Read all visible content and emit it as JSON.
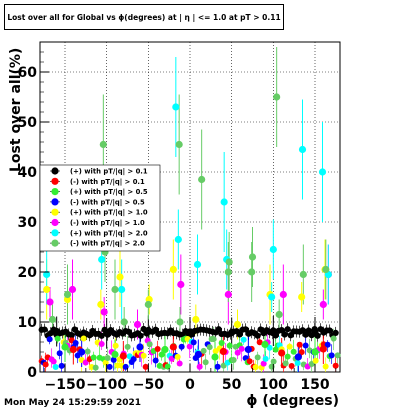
{
  "title": "Lost over all for Global vs ϕ(degrees) at | η | <= 1.0 at pT > 0.11",
  "timestamp": "Mon May 24 15:29:59 2021",
  "chart_data": {
    "type": "scatter",
    "title": "Lost over all for Global vs ϕ(degrees) at | η | <= 1.0 at pT > 0.11",
    "xlabel": "ϕ (degrees)",
    "ylabel": "Lost over all(%)",
    "xlim": [
      -180,
      180
    ],
    "ylim": [
      0,
      66
    ],
    "xticks": [
      -150,
      -100,
      -50,
      0,
      50,
      100,
      150
    ],
    "yticks": [
      0,
      10,
      20,
      30,
      40,
      50,
      60
    ],
    "grid": true,
    "legend_position": "left-middle",
    "series": [
      {
        "name": "(+) with pT/|q| > 0.1",
        "color": "#000000",
        "baseline": 8.0,
        "points": [
          [
            -160,
            8.1
          ],
          [
            -100,
            7.8
          ],
          [
            -50,
            8.3
          ],
          [
            0,
            8.0
          ],
          [
            50,
            7.9
          ],
          [
            100,
            8.2
          ],
          [
            150,
            8.0
          ]
        ]
      },
      {
        "name": "(-) with pT/|q| > 0.1",
        "color": "#ff0000",
        "baseline": 4.0,
        "points": [
          [
            -140,
            4.5
          ],
          [
            -80,
            3.2
          ],
          [
            -20,
            5.0
          ],
          [
            40,
            4.1
          ],
          [
            110,
            3.8
          ],
          [
            160,
            4.6
          ]
        ]
      },
      {
        "name": "(+) with pT/|q| > 0.5",
        "color": "#33ee33",
        "baseline": 4.0,
        "points": [
          [
            -150,
            5.0
          ],
          [
            -90,
            3.5
          ],
          [
            -30,
            4.5
          ],
          [
            30,
            3.0
          ],
          [
            90,
            5.5
          ],
          [
            150,
            4.0
          ]
        ]
      },
      {
        "name": "(-) with pT/|q| > 0.5",
        "color": "#0000ff",
        "baseline": 4.0,
        "points": [
          [
            -130,
            4.0
          ],
          [
            -60,
            5.0
          ],
          [
            10,
            3.5
          ],
          [
            70,
            4.5
          ],
          [
            130,
            3.0
          ]
        ]
      },
      {
        "name": "(+) with pT/|q| > 1.0",
        "color": "#ffff00",
        "baseline": 4.0,
        "points": [
          [
            -172,
            16.5
          ],
          [
            -147,
            14.5
          ],
          [
            -107,
            13.5
          ],
          [
            -84,
            19.0
          ],
          [
            -49,
            14.5
          ],
          [
            -20,
            20.5
          ],
          [
            7,
            10.5
          ],
          [
            57,
            9.5
          ],
          [
            96,
            15.5
          ],
          [
            134,
            15.0
          ],
          [
            162,
            20.5
          ]
        ]
      },
      {
        "name": "(-) with pT/|q| > 1.0",
        "color": "#ff00ff",
        "baseline": 4.0,
        "points": [
          [
            -168,
            14.0
          ],
          [
            -141,
            16.5
          ],
          [
            -103,
            12.0
          ],
          [
            -63,
            9.5
          ],
          [
            -11,
            17.5
          ],
          [
            46,
            15.5
          ],
          [
            112,
            15.5
          ],
          [
            160,
            13.5
          ],
          [
            166,
            19.5
          ]
        ]
      },
      {
        "name": "(+) with pT/|q| > 2.0",
        "color": "#00ffff",
        "baseline": 4.0,
        "points": [
          [
            -172,
            19.5
          ],
          [
            -106,
            22.5
          ],
          [
            -82,
            16.5
          ],
          [
            -17,
            53.0
          ],
          [
            -14,
            26.5
          ],
          [
            9,
            21.5
          ],
          [
            41,
            34.0
          ],
          [
            44,
            22.5
          ],
          [
            98,
            15.0
          ],
          [
            100,
            24.5
          ],
          [
            135,
            44.5
          ],
          [
            159,
            40.0
          ],
          [
            166,
            19.5
          ]
        ]
      },
      {
        "name": "(-) with pT/|q| > 2.0",
        "color": "#66cc66",
        "baseline": 4.0,
        "points": [
          [
            -165,
            10.5
          ],
          [
            -147,
            15.5
          ],
          [
            -104,
            45.5
          ],
          [
            -102,
            24.0
          ],
          [
            -90,
            16.5
          ],
          [
            -79,
            10.0
          ],
          [
            -50,
            13.5
          ],
          [
            -13,
            45.5
          ],
          [
            -12,
            10.0
          ],
          [
            14,
            38.5
          ],
          [
            46,
            20.0
          ],
          [
            47,
            22.0
          ],
          [
            74,
            20.0
          ],
          [
            75,
            23.0
          ],
          [
            104,
            55.0
          ],
          [
            107,
            11.5
          ],
          [
            136,
            19.5
          ],
          [
            163,
            20.5
          ]
        ]
      }
    ]
  }
}
